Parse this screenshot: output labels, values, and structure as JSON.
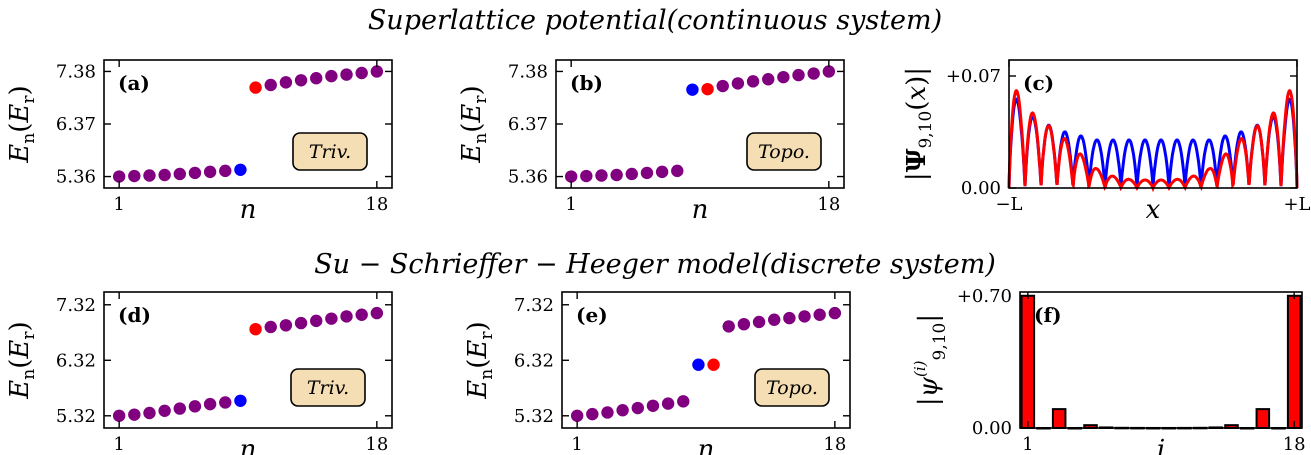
{
  "titles": {
    "top": "Superlattice potential(continuous system)",
    "bottom": "Su − Schrieffer − Heeger model(discrete system)"
  },
  "colors": {
    "bulk": "#800080",
    "left_edge": "#0000ff",
    "right_edge": "#ff0000",
    "badge_fill": "#f5deb3",
    "bar_fill": "#ff0000",
    "bar_edge": "#000000"
  },
  "chart_data": [
    {
      "id": "a",
      "type": "scatter",
      "label": "(a)",
      "ylabel": "E_n(E_r)",
      "xlabel": "n",
      "xticks": [
        "1",
        "18"
      ],
      "yticks": [
        "5.36",
        "6.37",
        "7.38"
      ],
      "xlim": [
        0,
        19
      ],
      "ylim": [
        5.14,
        7.6
      ],
      "badge": "Triv.",
      "x": [
        1,
        2,
        3,
        4,
        5,
        6,
        7,
        8,
        9,
        10,
        11,
        12,
        13,
        14,
        15,
        16,
        17,
        18
      ],
      "y": [
        5.36,
        5.37,
        5.38,
        5.39,
        5.41,
        5.43,
        5.45,
        5.47,
        5.49,
        7.07,
        7.12,
        7.17,
        7.21,
        7.25,
        7.29,
        7.32,
        7.35,
        7.38
      ],
      "colors": [
        "bulk",
        "bulk",
        "bulk",
        "bulk",
        "bulk",
        "bulk",
        "bulk",
        "bulk",
        "left_edge",
        "right_edge",
        "bulk",
        "bulk",
        "bulk",
        "bulk",
        "bulk",
        "bulk",
        "bulk",
        "bulk"
      ]
    },
    {
      "id": "b",
      "type": "scatter",
      "label": "(b)",
      "ylabel": "E_n(E_r)",
      "xlabel": "n",
      "xticks": [
        "1",
        "18"
      ],
      "yticks": [
        "5.36",
        "6.37",
        "7.38"
      ],
      "xlim": [
        0,
        19
      ],
      "ylim": [
        5.14,
        7.6
      ],
      "badge": "Topo.",
      "x": [
        1,
        2,
        3,
        4,
        5,
        6,
        7,
        8,
        9,
        10,
        11,
        12,
        13,
        14,
        15,
        16,
        17,
        18
      ],
      "y": [
        5.36,
        5.37,
        5.38,
        5.39,
        5.41,
        5.43,
        5.45,
        5.47,
        7.03,
        7.04,
        7.1,
        7.15,
        7.19,
        7.23,
        7.27,
        7.31,
        7.34,
        7.38
      ],
      "colors": [
        "bulk",
        "bulk",
        "bulk",
        "bulk",
        "bulk",
        "bulk",
        "bulk",
        "bulk",
        "left_edge",
        "right_edge",
        "bulk",
        "bulk",
        "bulk",
        "bulk",
        "bulk",
        "bulk",
        "bulk",
        "bulk"
      ]
    },
    {
      "id": "c",
      "type": "line",
      "label": "(c)",
      "ylabel": "|Ψ_9,10(x)|",
      "xlabel": "x",
      "xticks": [
        "−L",
        "+L"
      ],
      "yticks": [
        "0.00",
        "+0.07"
      ],
      "xlim": [
        -1,
        1
      ],
      "ylim": [
        0,
        0.08
      ],
      "series": [
        {
          "color": "left_edge",
          "envelope": [
            0.064,
            0.05,
            0.044,
            0.04,
            0.036,
            0.034,
            0.032,
            0.03,
            0.03,
            0.03,
            0.03,
            0.03,
            0.03,
            0.03,
            0.03,
            0.03,
            0.03,
            0.032,
            0.034,
            0.036,
            0.04,
            0.044,
            0.05,
            0.064
          ]
        },
        {
          "color": "right_edge",
          "envelope": [
            0.07,
            0.055,
            0.046,
            0.04,
            0.034,
            0.027,
            0.019,
            0.012,
            0.008,
            0.006,
            0.005,
            0.005,
            0.005,
            0.005,
            0.006,
            0.008,
            0.012,
            0.019,
            0.027,
            0.034,
            0.04,
            0.046,
            0.055,
            0.07
          ]
        }
      ]
    },
    {
      "id": "d",
      "type": "scatter",
      "label": "(d)",
      "ylabel": "E_n(E_r)",
      "xlabel": "n",
      "xticks": [
        "1",
        "18"
      ],
      "yticks": [
        "5.32",
        "6.32",
        "7.32"
      ],
      "xlim": [
        0,
        19
      ],
      "ylim": [
        5.1,
        7.55
      ],
      "badge": "Triv.",
      "x": [
        1,
        2,
        3,
        4,
        5,
        6,
        7,
        8,
        9,
        10,
        11,
        12,
        13,
        14,
        15,
        16,
        17,
        18
      ],
      "y": [
        5.32,
        5.34,
        5.37,
        5.41,
        5.45,
        5.49,
        5.53,
        5.56,
        5.59,
        6.88,
        6.92,
        6.95,
        6.99,
        7.03,
        7.07,
        7.11,
        7.14,
        7.17
      ],
      "colors": [
        "bulk",
        "bulk",
        "bulk",
        "bulk",
        "bulk",
        "bulk",
        "bulk",
        "bulk",
        "left_edge",
        "right_edge",
        "bulk",
        "bulk",
        "bulk",
        "bulk",
        "bulk",
        "bulk",
        "bulk",
        "bulk"
      ]
    },
    {
      "id": "e",
      "type": "scatter",
      "label": "(e)",
      "ylabel": "E_n(E_r)",
      "xlabel": "n",
      "xticks": [
        "1",
        "18"
      ],
      "yticks": [
        "5.32",
        "6.32",
        "7.32"
      ],
      "xlim": [
        0,
        19
      ],
      "ylim": [
        5.1,
        7.55
      ],
      "badge": "Topo.",
      "x": [
        1,
        2,
        3,
        4,
        5,
        6,
        7,
        8,
        9,
        10,
        11,
        12,
        13,
        14,
        15,
        16,
        17,
        18
      ],
      "y": [
        5.32,
        5.35,
        5.38,
        5.42,
        5.46,
        5.5,
        5.54,
        5.58,
        6.24,
        6.24,
        6.93,
        6.97,
        7.01,
        7.05,
        7.08,
        7.11,
        7.14,
        7.17
      ],
      "colors": [
        "bulk",
        "bulk",
        "bulk",
        "bulk",
        "bulk",
        "bulk",
        "bulk",
        "bulk",
        "left_edge",
        "right_edge",
        "bulk",
        "bulk",
        "bulk",
        "bulk",
        "bulk",
        "bulk",
        "bulk",
        "bulk"
      ]
    },
    {
      "id": "f",
      "type": "bar",
      "label": "(f)",
      "ylabel": "|ψ^(i)_9,10|",
      "xlabel": "i",
      "xticks": [
        "1",
        "18"
      ],
      "yticks": [
        "0.00",
        "+0.70"
      ],
      "xlim": [
        0.5,
        18.5
      ],
      "ylim": [
        0,
        0.72
      ],
      "x": [
        1,
        2,
        3,
        4,
        5,
        6,
        7,
        8,
        9,
        10,
        11,
        12,
        13,
        14,
        15,
        16,
        17,
        18
      ],
      "values": [
        0.7,
        0.0,
        0.1,
        0.0,
        0.015,
        0.003,
        0.001,
        0.0005,
        0.0002,
        0.0002,
        0.0005,
        0.001,
        0.003,
        0.015,
        0.0,
        0.1,
        0.0,
        0.7
      ]
    }
  ]
}
